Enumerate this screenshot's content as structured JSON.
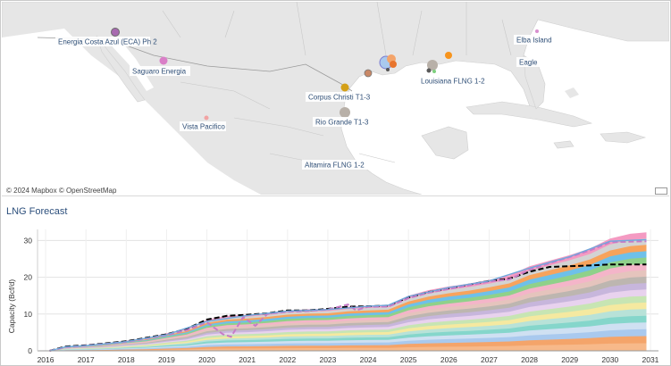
{
  "map": {
    "attribution": "© 2024 Mapbox  © OpenStreetMap",
    "terminals": [
      {
        "name": "Energia Costa Azul (ECA) Ph 2",
        "color": "#a86bb0"
      },
      {
        "name": "Saguaro Energia",
        "color": "#d97fc7"
      },
      {
        "name": "Vista Pacifico",
        "color": "#f2a3a3"
      },
      {
        "name": "Corpus Christi T1-3",
        "color": "#d4a017"
      },
      {
        "name": "Rio Grande T1-3",
        "color": "#b8b0a8"
      },
      {
        "name": "Altamira FLNG 1-2",
        "color": ""
      },
      {
        "name": "Louisiana FLNG 1-2",
        "color": "#5a5a5a"
      },
      {
        "name": "Elba Island",
        "color": "#d88fcf"
      },
      {
        "name": "Eagle",
        "color": ""
      }
    ]
  },
  "section": {
    "title": "LNG Forecast"
  },
  "chart_data": {
    "type": "area",
    "title": "LNG Forecast",
    "xlabel": "",
    "ylabel": "Capacity (Bcf/d)",
    "ylim": [
      0,
      33
    ],
    "yticks": [
      0,
      10,
      20,
      30
    ],
    "xticks": [
      "2016",
      "2017",
      "2018",
      "2019",
      "2020",
      "2021",
      "2022",
      "2023",
      "2024",
      "2025",
      "2026",
      "2027",
      "2028",
      "2029",
      "2030",
      "2031"
    ],
    "xrange": [
      2015.8,
      2031.2
    ],
    "stack_total": [
      [
        2016.1,
        0
      ],
      [
        2016.3,
        0.3
      ],
      [
        2016.5,
        1.2
      ],
      [
        2017.0,
        1.5
      ],
      [
        2017.5,
        2.0
      ],
      [
        2018.0,
        2.8
      ],
      [
        2018.5,
        3.5
      ],
      [
        2019.0,
        4.8
      ],
      [
        2019.5,
        6.0
      ],
      [
        2020.0,
        8.5
      ],
      [
        2020.5,
        9.5
      ],
      [
        2021.0,
        9.8
      ],
      [
        2021.5,
        10.3
      ],
      [
        2022.0,
        11.0
      ],
      [
        2022.5,
        11.3
      ],
      [
        2023.0,
        11.4
      ],
      [
        2023.5,
        12.0
      ],
      [
        2024.0,
        12.3
      ],
      [
        2024.5,
        12.5
      ],
      [
        2025.0,
        15.0
      ],
      [
        2025.5,
        16.5
      ],
      [
        2026.0,
        17.5
      ],
      [
        2026.5,
        18.3
      ],
      [
        2027.0,
        19.3
      ],
      [
        2027.5,
        20.5
      ],
      [
        2028.0,
        23.0
      ],
      [
        2028.5,
        24.5
      ],
      [
        2029.0,
        26.0
      ],
      [
        2029.5,
        27.8
      ],
      [
        2030.0,
        30.5
      ],
      [
        2030.5,
        31.8
      ],
      [
        2030.9,
        32.2
      ]
    ],
    "band_colors": [
      "#f7b98a",
      "#f4a46a",
      "#a9c9ee",
      "#cfe0f2",
      "#85d6cb",
      "#b8e2d8",
      "#f5e9a0",
      "#c7e5b3",
      "#e8d2ee",
      "#c7b6dc",
      "#bdb6b0",
      "#e5c4bd",
      "#f4b5c9",
      "#8fd18a",
      "#6ec0e9",
      "#f7a35c",
      "#d3d3d3",
      "#f49ac2"
    ],
    "series": [
      {
        "name": "",
        "style": "dashed",
        "color": "#000000",
        "points": [
          [
            2016.1,
            0
          ],
          [
            2016.5,
            1.2
          ],
          [
            2017.0,
            1.5
          ],
          [
            2018.0,
            2.6
          ],
          [
            2019.0,
            4.5
          ],
          [
            2019.5,
            6.0
          ],
          [
            2020.0,
            8.5
          ],
          [
            2020.5,
            9.5
          ],
          [
            2021.0,
            9.8
          ],
          [
            2021.5,
            10.2
          ],
          [
            2022.0,
            11.0
          ],
          [
            2022.5,
            11.0
          ],
          [
            2023.0,
            11.4
          ],
          [
            2023.5,
            12.0
          ],
          [
            2024.0,
            12.1
          ],
          [
            2024.5,
            12.3
          ],
          [
            2025.0,
            14.5
          ],
          [
            2025.5,
            16.0
          ],
          [
            2026.0,
            17.0
          ],
          [
            2026.5,
            18.0
          ],
          [
            2027.0,
            19.0
          ],
          [
            2027.5,
            19.6
          ],
          [
            2028.0,
            21.5
          ],
          [
            2028.5,
            22.8
          ],
          [
            2029.0,
            23.0
          ],
          [
            2029.5,
            23.2
          ],
          [
            2030.0,
            23.5
          ],
          [
            2030.9,
            23.5
          ]
        ]
      },
      {
        "name": "",
        "style": "dashed",
        "color": "#c77bc7",
        "points": [
          [
            2016.1,
            0
          ],
          [
            2016.5,
            1.0
          ],
          [
            2017.0,
            1.4
          ],
          [
            2018.0,
            2.4
          ],
          [
            2019.0,
            4.3
          ],
          [
            2019.5,
            5.6
          ],
          [
            2020.0,
            7.8
          ],
          [
            2020.4,
            4.5
          ],
          [
            2020.6,
            3.8
          ],
          [
            2020.9,
            9.2
          ],
          [
            2021.2,
            6.8
          ],
          [
            2021.5,
            10.0
          ],
          [
            2022.0,
            10.6
          ],
          [
            2022.5,
            10.8
          ],
          [
            2023.0,
            11.2
          ],
          [
            2023.5,
            12.6
          ],
          [
            2023.7,
            11.0
          ],
          [
            2024.0,
            12.0
          ],
          [
            2024.5,
            12.0
          ],
          [
            2025.0,
            14.3
          ],
          [
            2025.5,
            15.8
          ],
          [
            2026.0,
            16.8
          ],
          [
            2026.5,
            17.8
          ],
          [
            2027.0,
            18.8
          ],
          [
            2027.5,
            19.4
          ],
          [
            2028.0,
            22.0
          ],
          [
            2028.5,
            23.8
          ],
          [
            2029.0,
            25.5
          ],
          [
            2029.5,
            27.3
          ],
          [
            2030.0,
            29.5
          ],
          [
            2030.9,
            29.8
          ]
        ]
      },
      {
        "name": "",
        "style": "solid",
        "color": "#6fa8dc",
        "points": [
          [
            2016.1,
            0
          ],
          [
            2016.5,
            1.1
          ],
          [
            2017.0,
            1.4
          ],
          [
            2018.0,
            2.5
          ],
          [
            2019.0,
            4.4
          ],
          [
            2020.0,
            8.0
          ],
          [
            2021.0,
            9.6
          ],
          [
            2022.0,
            10.8
          ],
          [
            2023.0,
            11.2
          ],
          [
            2024.0,
            12.1
          ],
          [
            2024.5,
            12.4
          ],
          [
            2025.0,
            14.8
          ],
          [
            2026.0,
            17.2
          ],
          [
            2027.0,
            19.0
          ],
          [
            2028.0,
            22.5
          ],
          [
            2029.0,
            25.6
          ],
          [
            2030.0,
            29.8
          ],
          [
            2030.9,
            30.2
          ]
        ]
      }
    ]
  }
}
